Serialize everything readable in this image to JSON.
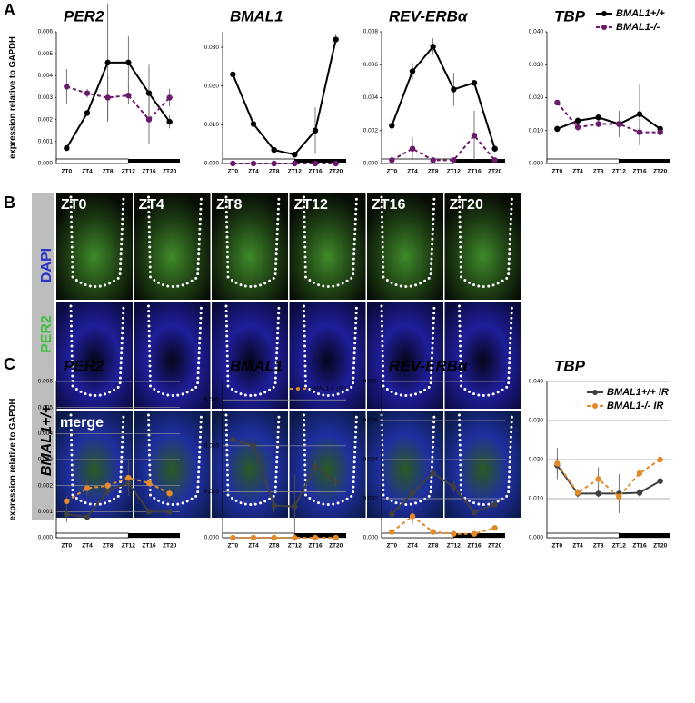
{
  "panel_labels": [
    "A",
    "B",
    "C"
  ],
  "image_grid": {
    "columns": [
      "ZT0",
      "ZT4",
      "ZT8",
      "ZT12",
      "ZT16",
      "ZT20"
    ],
    "row_labels": [
      "DAPI",
      "PER2",
      "BMAL1+/+"
    ],
    "merge_label": "merge"
  },
  "chart_data": [
    {
      "type": "line",
      "title": "PER2",
      "ylabel": "expression relative to GAPDH",
      "categories": [
        "ZT0",
        "ZT4",
        "ZT8",
        "ZT12",
        "ZT16",
        "ZT20"
      ],
      "ylim": [
        0,
        0.006
      ],
      "yticks": [
        {
          "value": 0,
          "label": "0.000"
        },
        {
          "value": 0.001,
          "label": "0.001"
        },
        {
          "value": 0.002,
          "label": "0.002"
        },
        {
          "value": 0.003,
          "label": "0.003"
        },
        {
          "value": 0.004,
          "label": "0.004"
        },
        {
          "value": 0.005,
          "label": "0.005"
        },
        {
          "value": 0.006,
          "label": "0.006"
        }
      ],
      "grid": false,
      "series": [
        {
          "name": "BMAL1+/+",
          "color": "#000000",
          "linestyle": "solid",
          "values": [
            0.0007,
            0.0023,
            0.0046,
            0.0046,
            0.0032,
            0.0019
          ],
          "errors": [
            0.0001,
            0.0001,
            0.0027,
            0.0012,
            0.0013,
            0.0003
          ]
        },
        {
          "name": "BMAL1-/-",
          "color": "#6b1a6b",
          "linestyle": "dashed",
          "values": [
            0.0035,
            0.0032,
            0.003,
            0.0031,
            0.002,
            0.003
          ],
          "errors": [
            0.0008,
            0.0002,
            0.001,
            0.0004,
            0.0011,
            0.0004
          ]
        }
      ]
    },
    {
      "type": "line",
      "title": "BMAL1",
      "categories": [
        "ZT0",
        "ZT4",
        "ZT8",
        "ZT12",
        "ZT16",
        "ZT20"
      ],
      "ylim": [
        0,
        0.034
      ],
      "yticks": [
        {
          "value": 0,
          "label": "0.000"
        },
        {
          "value": 0.01,
          "label": "0.010"
        },
        {
          "value": 0.02,
          "label": "0.020"
        },
        {
          "value": 0.03,
          "label": "0.030"
        }
      ],
      "grid": false,
      "series": [
        {
          "name": "BMAL1+/+",
          "color": "#000000",
          "linestyle": "solid",
          "values": [
            0.023,
            0.0102,
            0.0035,
            0.0023,
            0.0085,
            0.032
          ],
          "errors": [
            0.0005,
            0.0003,
            0.0003,
            0.0003,
            0.006,
            0.0015
          ]
        },
        {
          "name": "BMAL1-/-",
          "color": "#6b1a6b",
          "linestyle": "dashed",
          "values": [
            0,
            0,
            0,
            0,
            0,
            0
          ],
          "errors": [
            0,
            0,
            0,
            0,
            0,
            0
          ]
        }
      ]
    },
    {
      "type": "line",
      "title": "REV-ERBα",
      "categories": [
        "ZT0",
        "ZT4",
        "ZT8",
        "ZT12",
        "ZT16",
        "ZT20"
      ],
      "ylim": [
        0,
        0.008
      ],
      "yticks": [
        {
          "value": 0,
          "label": "0.000"
        },
        {
          "value": 0.002,
          "label": "0.002"
        },
        {
          "value": 0.004,
          "label": "0.004"
        },
        {
          "value": 0.006,
          "label": "0.006"
        },
        {
          "value": 0.008,
          "label": "0.008"
        }
      ],
      "grid": false,
      "series": [
        {
          "name": "BMAL1+/+",
          "color": "#000000",
          "linestyle": "solid",
          "values": [
            0.0023,
            0.0056,
            0.0071,
            0.0045,
            0.0049,
            0.0009
          ],
          "errors": [
            0.0006,
            0.0005,
            0.0005,
            0.001,
            0,
            0.0002
          ]
        },
        {
          "name": "BMAL1-/-",
          "color": "#6b1a6b",
          "linestyle": "dashed",
          "values": [
            0.0002,
            0.0009,
            0.0002,
            0.0002,
            0.0017,
            0.0002
          ],
          "errors": [
            0.0001,
            0.0007,
            0,
            0,
            0.0015,
            0.0001
          ]
        }
      ]
    },
    {
      "type": "line",
      "title": "TBP",
      "legend": "upper right",
      "categories": [
        "ZT0",
        "ZT4",
        "ZT8",
        "ZT12",
        "ZT16",
        "ZT20"
      ],
      "ylim": [
        0,
        0.04
      ],
      "yticks": [
        {
          "value": 0,
          "label": "0.000"
        },
        {
          "value": 0.01,
          "label": "0.010"
        },
        {
          "value": 0.02,
          "label": "0.020"
        },
        {
          "value": 0.03,
          "label": "0.030"
        },
        {
          "value": 0.04,
          "label": "0.040"
        }
      ],
      "grid": false,
      "series": [
        {
          "name": "BMAL1+/+",
          "color": "#000000",
          "linestyle": "solid",
          "values": [
            0.0105,
            0.013,
            0.014,
            0.012,
            0.015,
            0.0105
          ],
          "errors": [
            0.001,
            0.001,
            0.001,
            0.004,
            0.009,
            0.001
          ]
        },
        {
          "name": "BMAL1-/-",
          "color": "#6b1a6b",
          "linestyle": "dashed",
          "values": [
            0.0185,
            0.011,
            0.012,
            0.012,
            0.0095,
            0.0095
          ],
          "errors": [
            0,
            0.001,
            0.001,
            0.001,
            0.004,
            0.001
          ]
        }
      ]
    },
    {
      "type": "line",
      "title": "PER2",
      "ylabel": "expression relative to GAPDH",
      "categories": [
        "ZT0",
        "ZT4",
        "ZT8",
        "ZT12",
        "ZT16",
        "ZT20"
      ],
      "ylim": [
        0,
        0.006
      ],
      "yticks": [
        {
          "value": 0,
          "label": "0.000"
        },
        {
          "value": 0.001,
          "label": "0.001"
        },
        {
          "value": 0.002,
          "label": "0.002"
        },
        {
          "value": 0.003,
          "label": "0.003"
        },
        {
          "value": 0.004,
          "label": "0.004"
        },
        {
          "value": 0.005,
          "label": "0.005"
        },
        {
          "value": 0.006,
          "label": "0.006"
        }
      ],
      "grid": true,
      "series": [
        {
          "color": "#404040",
          "linestyle": "solid",
          "values": [
            0.0009,
            0.0008,
            0.0018,
            0.0021,
            0.001,
            0.001
          ],
          "errors": [
            0.0003,
            0.0001,
            0.0002,
            0.0003,
            0.0001,
            0.0001
          ]
        },
        {
          "color": "#e08a2c",
          "linestyle": "dashed",
          "values": [
            0.0014,
            0.0019,
            0.002,
            0.0023,
            0.0021,
            0.0017
          ],
          "errors": [
            0.0002,
            0.0003,
            0.0002,
            0.0007,
            0.0003,
            0.0002
          ]
        }
      ]
    },
    {
      "type": "line",
      "title": "BMAL1",
      "legend": "upper right",
      "categories": [
        "ZT0",
        "ZT4",
        "ZT8",
        "ZT12",
        "ZT16",
        "ZT20"
      ],
      "ylim": [
        0,
        0.034
      ],
      "yticks": [
        {
          "value": 0,
          "label": "0.000"
        },
        {
          "value": 0.01,
          "label": "0.010"
        },
        {
          "value": 0.02,
          "label": "0.020"
        },
        {
          "value": 0.03,
          "label": "0.030"
        }
      ],
      "grid": true,
      "series": [
        {
          "color": "#404040",
          "linestyle": "solid",
          "values": [
            0.0213,
            0.02,
            0.007,
            0.0068,
            0.0155,
            0.0122
          ],
          "errors": [
            0.0003,
            0.0003,
            0.0015,
            0.007,
            0.001,
            0.001
          ]
        },
        {
          "name": "BMAL1-/- (IR)",
          "color": "#e08a2c",
          "linestyle": "dashed",
          "values": [
            0,
            0,
            0,
            0,
            0,
            0
          ],
          "errors": [
            0,
            0,
            0,
            0,
            0,
            0
          ]
        }
      ]
    },
    {
      "type": "line",
      "title": "REV-ERBα",
      "categories": [
        "ZT0",
        "ZT4",
        "ZT8",
        "ZT12",
        "ZT16",
        "ZT20"
      ],
      "ylim": [
        0,
        0.008
      ],
      "yticks": [
        {
          "value": 0,
          "label": "0.000"
        },
        {
          "value": 0.002,
          "label": "0.002"
        },
        {
          "value": 0.004,
          "label": "0.004"
        },
        {
          "value": 0.006,
          "label": "0.006"
        },
        {
          "value": 0.008,
          "label": "0.008"
        }
      ],
      "grid": true,
      "series": [
        {
          "color": "#404040",
          "linestyle": "solid",
          "values": [
            0.0012,
            0.0023,
            0.0033,
            0.0026,
            0.0013,
            0.0017
          ],
          "errors": [
            0.0004,
            0.0002,
            0.0001,
            0.0003,
            0.0001,
            0.0001
          ]
        },
        {
          "color": "#e08a2c",
          "linestyle": "dashed",
          "values": [
            0.0003,
            0.0011,
            0.0003,
            0.0002,
            0.0002,
            0.0005
          ],
          "errors": [
            0.0001,
            0.0004,
            0.0001,
            0,
            0,
            0.0001
          ]
        }
      ]
    },
    {
      "type": "line",
      "title": "TBP",
      "legend": "upper right",
      "categories": [
        "ZT0",
        "ZT4",
        "ZT8",
        "ZT12",
        "ZT16",
        "ZT20"
      ],
      "ylim": [
        0,
        0.04
      ],
      "yticks": [
        {
          "value": 0,
          "label": "0.000"
        },
        {
          "value": 0.01,
          "label": "0.010"
        },
        {
          "value": 0.02,
          "label": "0.020"
        },
        {
          "value": 0.03,
          "label": "0.030"
        },
        {
          "value": 0.04,
          "label": "0.040"
        }
      ],
      "grid": true,
      "series": [
        {
          "name": "BMAL1+/+ IR",
          "color": "#404040",
          "linestyle": "solid",
          "values": [
            0.0185,
            0.0113,
            0.0113,
            0.0113,
            0.0115,
            0.0145
          ],
          "errors": [
            0.002,
            0.001,
            0.001,
            0.005,
            0.001,
            0.001
          ]
        },
        {
          "name": "BMAL1-/- IR",
          "color": "#e08a2c",
          "linestyle": "dashed",
          "values": [
            0.019,
            0.0115,
            0.015,
            0.0105,
            0.0165,
            0.02
          ],
          "errors": [
            0.004,
            0.001,
            0.003,
            0.001,
            0.001,
            0.002
          ]
        }
      ]
    }
  ]
}
